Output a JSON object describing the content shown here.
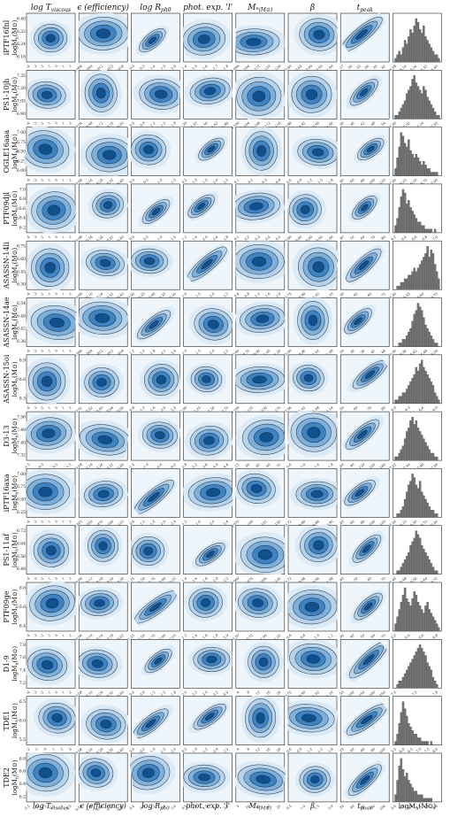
{
  "chart_data": {
    "type": "contour-matrix",
    "description_free": true,
    "column_titles": [
      "log T_viscous",
      "ε (efficiency)",
      "log R_ph0",
      "phot. exp. 'l'",
      "M*(M⊙)",
      "β",
      "t_peak"
    ],
    "column_titles_display": [
      "log T",
      "ϵ (efficiency)",
      "log R",
      "phot. exp. 'l'",
      "M",
      "β",
      "t"
    ],
    "column_titles_sub": [
      "viscous",
      "",
      "ph0",
      "",
      "*(M⊙)",
      "",
      "peak"
    ],
    "bottom_labels_display": [
      "log T",
      "ϵ (efficiency)",
      "log R",
      "phot. exp. 'l'",
      "M",
      "β",
      "t"
    ],
    "bottom_labels_sub": [
      "viscous",
      "",
      "ph0",
      "",
      "*(M⊙)",
      "",
      "peak"
    ],
    "hist_xlabel": "logM",
    "hist_xlabel_sub": "h",
    "hist_xlabel_tail": "(M⊙)",
    "row_ylabel": "logM",
    "row_ylabel_sub": "h",
    "row_ylabel_tail": "(M⊙)",
    "rows": [
      {
        "event": "iPTF16fnl",
        "yticks": [
          "6.40",
          "6.32",
          "6.24",
          "6.16"
        ],
        "hist_xticks": [
          "6.08",
          "6.16",
          "6.24",
          "6.32",
          "6.40"
        ],
        "hist": [
          1,
          2,
          3,
          2,
          4,
          6,
          5,
          7,
          9,
          8,
          10,
          12,
          11,
          9,
          8,
          10,
          7,
          6,
          5,
          4,
          3,
          2,
          2,
          1
        ]
      },
      {
        "event": "PS1-10jh",
        "yticks": [
          "7.35",
          "7.20",
          "7.05",
          "6.90"
        ],
        "hist_xticks": [
          "6.90",
          "7.05",
          "7.20",
          "7.35"
        ],
        "hist": [
          1,
          1,
          2,
          3,
          4,
          5,
          7,
          8,
          9,
          11,
          12,
          10,
          9,
          8,
          7,
          9,
          8,
          6,
          5,
          4,
          3,
          2,
          1,
          1
        ]
      },
      {
        "event": "OGLE16aaa",
        "yticks": [
          "7.00",
          "6.75",
          "6.50",
          "6.25",
          "6.00"
        ],
        "hist_xticks": [
          "6.00",
          "6.25",
          "6.50",
          "6.75",
          "7.00"
        ],
        "hist": [
          2,
          5,
          8,
          12,
          11,
          9,
          8,
          10,
          7,
          6,
          5,
          6,
          5,
          4,
          3,
          4,
          3,
          2,
          2,
          1,
          1,
          1,
          1,
          0
        ]
      },
      {
        "event": "PTF09djl",
        "yticks": [
          "7.0",
          "6.8",
          "6.6",
          "6.4",
          "6.2"
        ],
        "hist_xticks": [
          "6.2",
          "6.4",
          "6.6",
          "6.8",
          "7.0"
        ],
        "hist": [
          2,
          4,
          7,
          10,
          12,
          11,
          8,
          9,
          7,
          6,
          5,
          4,
          3,
          3,
          2,
          2,
          1,
          1,
          1,
          1,
          0,
          1,
          0,
          0
        ]
      },
      {
        "event": "ASASSN-14li",
        "yticks": [
          "6.75",
          "6.60",
          "6.45",
          "6.30"
        ],
        "hist_xticks": [
          "6.30",
          "6.45",
          "6.60",
          "6.75"
        ],
        "hist": [
          0,
          1,
          1,
          2,
          2,
          3,
          3,
          4,
          4,
          5,
          6,
          5,
          6,
          7,
          8,
          9,
          10,
          12,
          9,
          11,
          10,
          7,
          5,
          3
        ]
      },
      {
        "event": "ASASSN-14ae",
        "yticks": [
          "6.54",
          "6.48",
          "6.42",
          "6.36"
        ],
        "hist_xticks": [
          "6.30",
          "6.36",
          "6.42",
          "6.48",
          "6.54"
        ],
        "hist": [
          0,
          0,
          1,
          1,
          2,
          2,
          3,
          4,
          5,
          7,
          9,
          10,
          12,
          11,
          10,
          8,
          6,
          5,
          4,
          3,
          2,
          1,
          1,
          0
        ]
      },
      {
        "event": "ASASSN-15oi",
        "yticks": [
          "6.9",
          "6.6",
          "6.3"
        ],
        "hist_xticks": [
          "6.0",
          "6.3",
          "6.6",
          "6.9"
        ],
        "hist": [
          1,
          1,
          2,
          2,
          3,
          3,
          4,
          5,
          6,
          7,
          8,
          10,
          9,
          11,
          12,
          10,
          9,
          8,
          7,
          6,
          5,
          3,
          2,
          1
        ]
      },
      {
        "event": "D3-13",
        "yticks": [
          "7.56",
          "7.48",
          "7.40",
          "7.32"
        ],
        "hist_xticks": [
          "7.32",
          "7.40",
          "7.48",
          "7.56"
        ],
        "hist": [
          1,
          1,
          2,
          3,
          4,
          6,
          8,
          9,
          11,
          12,
          10,
          11,
          9,
          8,
          7,
          6,
          5,
          4,
          3,
          2,
          2,
          1,
          1,
          0
        ]
      },
      {
        "event": "iPTF16axa",
        "yticks": [
          "7.00",
          "6.75",
          "6.50",
          "6.25"
        ],
        "hist_xticks": [
          "6.00",
          "6.25",
          "6.50",
          "6.75",
          "7.00"
        ],
        "hist": [
          0,
          1,
          1,
          2,
          3,
          5,
          7,
          9,
          10,
          12,
          11,
          9,
          8,
          10,
          7,
          6,
          5,
          4,
          3,
          2,
          2,
          1,
          1,
          0
        ]
      },
      {
        "event": "PS1-11af",
        "yticks": [
          "6.72",
          "6.64",
          "6.56",
          "6.48"
        ],
        "hist_xticks": [
          "6.40",
          "6.48",
          "6.56",
          "6.64",
          "6.72"
        ],
        "hist": [
          0,
          1,
          1,
          2,
          3,
          4,
          5,
          6,
          8,
          9,
          10,
          12,
          11,
          10,
          8,
          7,
          6,
          5,
          4,
          3,
          2,
          1,
          1,
          0
        ]
      },
      {
        "event": "PTF09ge",
        "yticks": [
          "6.8",
          "6.6",
          "6.4"
        ],
        "hist_xticks": [
          "6.2",
          "6.4",
          "6.6",
          "6.8"
        ],
        "hist": [
          2,
          4,
          6,
          8,
          10,
          12,
          9,
          8,
          7,
          9,
          11,
          10,
          8,
          7,
          6,
          5,
          7,
          8,
          6,
          5,
          4,
          3,
          2,
          1
        ]
      },
      {
        "event": "D1-9",
        "yticks": [
          "7.8",
          "7.6",
          "7.4",
          "7.2"
        ],
        "hist_xticks": [
          "7.2",
          "7.5",
          "7.8"
        ],
        "hist": [
          0,
          1,
          2,
          2,
          3,
          4,
          5,
          6,
          7,
          8,
          9,
          10,
          11,
          12,
          11,
          10,
          9,
          7,
          6,
          5,
          3,
          2,
          1,
          0
        ]
      },
      {
        "event": "TDE1",
        "yticks": [
          "6.5",
          "6.0",
          "5.5"
        ],
        "hist_xticks": [
          "5.5",
          "6.0",
          "6.5",
          "7.0",
          "7.5",
          "8.0"
        ],
        "hist": [
          1,
          3,
          6,
          9,
          12,
          10,
          8,
          6,
          5,
          4,
          3,
          3,
          2,
          2,
          1,
          1,
          1,
          1,
          0,
          1,
          0,
          0,
          0,
          0
        ]
      },
      {
        "event": "TDE2",
        "yticks": [
          "6.8",
          "6.6",
          "6.4",
          "6.2"
        ],
        "hist_xticks": [
          "6.0",
          "6.4",
          "6.8",
          "7.2",
          "7.6",
          "8.0"
        ],
        "hist": [
          2,
          6,
          10,
          12,
          9,
          7,
          8,
          6,
          5,
          4,
          3,
          3,
          2,
          2,
          2,
          1,
          1,
          1,
          1,
          1,
          0,
          0,
          0,
          0
        ]
      }
    ],
    "col_xticks": [
      [
        [
          "-4",
          "-3",
          "-2",
          "-1",
          "0",
          "1",
          "2"
        ],
        [
          "-4",
          "-3",
          "-2",
          "-1",
          "0",
          "1",
          "2"
        ],
        [
          "-4",
          "-3",
          "-2",
          "-1",
          "0",
          "1",
          "2"
        ],
        [
          "-4",
          "-3",
          "-2",
          "-1",
          "0",
          "1",
          "2"
        ],
        [
          "-4",
          "-3",
          "-2",
          "-1",
          "0",
          "1",
          "2"
        ],
        [
          "-4",
          "-3",
          "-2",
          "-1",
          "0",
          "1",
          "2"
        ],
        [
          "-4",
          "-3",
          "-2",
          "-1",
          "0",
          "1",
          "2"
        ],
        [
          "-1.5",
          "-0.5",
          "0.5",
          "1.5"
        ],
        [
          "-4",
          "-3",
          "-2",
          "-1",
          "0",
          "1",
          "2"
        ],
        [
          "-4",
          "-3",
          "-2",
          "-1",
          "0",
          "1",
          "2"
        ],
        [
          "-4",
          "-3",
          "-2",
          "-1",
          "0",
          "1",
          "2"
        ],
        [
          "-4",
          "-3",
          "-2",
          "-1",
          "0",
          "1",
          "2"
        ],
        [
          "-2",
          "-1",
          "0",
          "1",
          "2",
          "3"
        ],
        [
          "-2.5",
          "-1.5",
          "-0.5",
          "0.5",
          "1.5",
          "2.5"
        ]
      ],
      [
        [
          "0.006",
          "0.009",
          "0.012",
          "0.015",
          "0.018"
        ],
        [
          "0.04",
          "0.08",
          "0.12",
          "0.16",
          "0.20"
        ],
        [
          "0.08",
          "0.16",
          "0.24",
          "0.32",
          "0.40"
        ],
        [
          "0.08",
          "0.16",
          "0.24",
          "0.32",
          "0.40"
        ],
        [
          "0.08",
          "0.16",
          "0.24",
          "0.32",
          "0.40"
        ],
        [
          "0.006",
          "0.009",
          "0.012",
          "0.015",
          "0.018"
        ],
        [
          "0.01",
          "0.02",
          "0.03",
          "0.04",
          "0.05"
        ],
        [
          "0.08",
          "0.16",
          "0.24",
          "0.32",
          "0.40"
        ],
        [
          "0.025",
          "0.050",
          "0.075",
          "0.100",
          "0.125"
        ],
        [
          "0.06",
          "0.12",
          "0.18",
          "0.24",
          "0.30"
        ],
        [
          "0.06",
          "0.10",
          "0.14",
          "0.18",
          "0.22"
        ],
        [
          "0.08",
          "0.16",
          "0.24",
          "0.32",
          "0.40"
        ],
        [
          "0.08",
          "0.16",
          "0.24",
          "0.32",
          "0.40"
        ],
        [
          "0.08",
          "0.16",
          "0.24",
          "0.32",
          "0.40"
        ]
      ],
      [
        [
          "0.0",
          "0.5",
          "1.0",
          "1.5",
          "2.0"
        ],
        [
          "0.6",
          "0.9",
          "1.2",
          "1.5",
          "1.8"
        ],
        [
          "0.0",
          "0.5",
          "1.0",
          "1.5"
        ],
        [
          "0.0",
          "0.5",
          "1.0",
          "1.5"
        ],
        [
          "-0.50",
          "-0.25",
          "0.00",
          "0.25",
          "0.50"
        ],
        [
          "1.2",
          "1.5",
          "1.8",
          "2.1",
          "2.4"
        ],
        [
          "0.8",
          "1.2",
          "1.6",
          "2.0",
          "2.4"
        ],
        [
          "-1.4",
          "-1.0",
          "-0.6",
          "-0.2"
        ],
        [
          "0.8",
          "1.2",
          "1.6",
          "2.0",
          "2.4"
        ],
        [
          "1.25",
          "1.50",
          "1.75",
          "2.00",
          "2.25"
        ],
        [
          "1.25",
          "1.50",
          "1.75",
          "2.00",
          "2.25"
        ],
        [
          "0.6",
          "0.9",
          "1.2",
          "1.5",
          "1.8"
        ],
        [
          "0.0",
          "0.5",
          "1.0",
          "1.5",
          "2.0"
        ],
        [
          "0.4",
          "0.8",
          "1.2",
          "1.6",
          "2.0"
        ]
      ],
      [
        [
          "1.4",
          "1.5",
          "1.6",
          "1.7",
          "1.8"
        ],
        [
          "1.20",
          "1.35",
          "1.50",
          "1.65",
          "1.80"
        ],
        [
          "0.5",
          "1.0",
          "1.5",
          "2.0",
          "2.5"
        ],
        [
          "1.2",
          "1.6",
          "2.0",
          "2.4",
          "2.8"
        ],
        [
          "1.0",
          "1.5",
          "2.0",
          "2.5"
        ],
        [
          "1.0",
          "1.5",
          "2.0",
          "2.5"
        ],
        [
          "2.00",
          "2.25",
          "2.50",
          "2.75"
        ],
        [
          "2.8",
          "3.2",
          "3.6",
          "4.0",
          "4.4"
        ],
        [
          "1.2",
          "1.6",
          "2.0",
          "2.4"
        ],
        [
          "1.4",
          "1.6",
          "1.8",
          "2.0",
          "2.2"
        ],
        [
          "1.2",
          "1.4",
          "1.6",
          "1.8",
          "2.0"
        ],
        [
          "2.0",
          "2.5",
          "3.0",
          "3.5",
          "4.0"
        ],
        [
          "0.5",
          "1.0",
          "1.5",
          "2.0",
          "2.5"
        ],
        [
          "0.5",
          "1.0",
          "1.5",
          "2.0",
          "2.5"
        ]
      ],
      [
        [
          "0.096",
          "0.104",
          "0.112",
          "0.120",
          "0.128"
        ],
        [
          "0.100",
          "0.104",
          "0.108",
          "0.112",
          "0.116"
        ],
        [
          "0.1",
          "0.2",
          "0.3",
          "0.4"
        ],
        [
          "0.1",
          "0.2",
          "0.3",
          "0.4",
          "0.5"
        ],
        [
          "0.4",
          "0.8",
          "1.2",
          "1.6",
          "2.0"
        ],
        [
          "0.60",
          "0.75",
          "0.90",
          "1.05",
          "1.20"
        ],
        [
          "0.100",
          "0.125",
          "0.150",
          "0.175"
        ],
        [
          "15",
          "30",
          "45",
          "60",
          "75"
        ],
        [
          "0.075",
          "0.100",
          "0.125",
          "0.150"
        ],
        [
          "0.060",
          "0.075",
          "0.090",
          "0.105"
        ],
        [
          "0.50",
          "0.75",
          "1.00",
          "1.25"
        ],
        [
          "4",
          "8",
          "12",
          "16",
          "20"
        ],
        [
          "4",
          "8",
          "12",
          "16",
          "20"
        ],
        [
          "5",
          "10",
          "15",
          "20",
          "25"
        ]
      ],
      [
        [
          "0.80",
          "0.85",
          "0.90",
          "0.95",
          "1.00"
        ],
        [
          "0.88",
          "0.92",
          "0.96",
          "1.00"
        ],
        [
          "0.6",
          "0.9",
          "1.2",
          "1.5",
          "1.8"
        ],
        [
          "0.80",
          "0.85",
          "0.90",
          "0.95",
          "1.00"
        ],
        [
          "0.75",
          "0.90",
          "1.05",
          "1.20"
        ],
        [
          "0.90",
          "0.96",
          "1.02",
          "1.08"
        ],
        [
          "0.96",
          "1.02",
          "1.08",
          "1.14"
        ],
        [
          "0.6",
          "1.0",
          "1.4",
          "1.8"
        ],
        [
          "0.72",
          "0.80",
          "0.88",
          "0.96"
        ],
        [
          "0.72",
          "0.84",
          "0.96",
          "1.08"
        ],
        [
          "0.6",
          "0.8",
          "1.0",
          "1.2"
        ],
        [
          "0.75",
          "0.90",
          "1.05",
          "1.20"
        ],
        [
          "0.6",
          "0.9",
          "1.2",
          "1.5",
          "1.8"
        ],
        [
          "0.5",
          "1.0",
          "1.5",
          "2.0"
        ]
      ],
      [
        [
          "27",
          "30",
          "33",
          "36",
          "39",
          "42"
        ],
        [
          "30",
          "36",
          "42",
          "48",
          "54"
        ],
        [
          "40",
          "60",
          "80",
          "100",
          "120"
        ],
        [
          "40",
          "50",
          "60",
          "70",
          "80"
        ],
        [
          "30",
          "45",
          "60",
          "75"
        ],
        [
          "24",
          "30",
          "36",
          "42",
          "48"
        ],
        [
          "50",
          "60",
          "70",
          "80"
        ],
        [
          "60",
          "90",
          "120",
          "150",
          "180"
        ],
        [
          "40",
          "60",
          "80",
          "100",
          "120"
        ],
        [
          "40",
          "50",
          "60",
          "70"
        ],
        [
          "30",
          "40",
          "50",
          "60",
          "70"
        ],
        [
          "50",
          "100",
          "150",
          "200",
          "250"
        ],
        [
          "20",
          "40",
          "60",
          "80",
          "100"
        ],
        [
          "20",
          "40",
          "60",
          "80",
          "100"
        ]
      ]
    ]
  }
}
